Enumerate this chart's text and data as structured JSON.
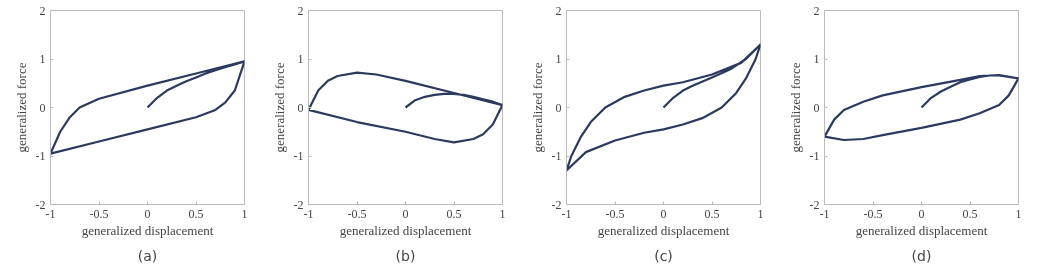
{
  "chart_data": [
    {
      "type": "line",
      "xlabel": "generalized displacement",
      "ylabel": "generalized force",
      "annotations": [
        "(a)"
      ],
      "xlim": [
        -1,
        1
      ],
      "ylim": [
        -2,
        2
      ],
      "xticks": [
        -1,
        -0.5,
        0,
        0.5,
        1
      ],
      "yticks": [
        -2,
        -1,
        0,
        1,
        2
      ],
      "grid": false,
      "series": [
        {
          "color": "#2b3a5e",
          "x": [
            0,
            0.1,
            0.2,
            0.3,
            0.4,
            0.5,
            0.6,
            0.7,
            0.8,
            0.9,
            1,
            0.5,
            0,
            -0.5,
            -0.7,
            -0.8,
            -0.9,
            -1,
            -0.5,
            0,
            0.5,
            0.7,
            0.8,
            0.9,
            1
          ],
          "values": [
            0,
            0.2,
            0.35,
            0.45,
            0.54,
            0.62,
            0.7,
            0.77,
            0.83,
            0.89,
            0.95,
            0.7,
            0.45,
            0.18,
            0,
            -0.2,
            -0.5,
            -0.95,
            -0.7,
            -0.45,
            -0.2,
            -0.05,
            0.1,
            0.35,
            0.95
          ]
        }
      ]
    },
    {
      "type": "line",
      "xlabel": "generalized displacement",
      "ylabel": "generalized force",
      "annotations": [
        "(b)"
      ],
      "xlim": [
        -1,
        1
      ],
      "ylim": [
        -2,
        2
      ],
      "xticks": [
        -1,
        -0.5,
        0,
        0.5,
        1
      ],
      "yticks": [
        -2,
        -1,
        0,
        1,
        2
      ],
      "grid": false,
      "series": [
        {
          "color": "#2b3a5e",
          "x": [
            0,
            0.1,
            0.2,
            0.3,
            0.4,
            0.5,
            0.6,
            0.7,
            0.8,
            0.9,
            1,
            0.5,
            0,
            -0.3,
            -0.5,
            -0.7,
            -0.8,
            -0.9,
            -1,
            -0.5,
            0,
            0.3,
            0.5,
            0.7,
            0.8,
            0.9,
            1
          ],
          "values": [
            0,
            0.15,
            0.22,
            0.26,
            0.28,
            0.28,
            0.26,
            0.22,
            0.17,
            0.12,
            0.05,
            0.3,
            0.55,
            0.68,
            0.72,
            0.65,
            0.55,
            0.35,
            -0.05,
            -0.3,
            -0.5,
            -0.65,
            -0.72,
            -0.65,
            -0.55,
            -0.35,
            0.05
          ]
        }
      ]
    },
    {
      "type": "line",
      "xlabel": "generalized displacement",
      "ylabel": "generalized force",
      "annotations": [
        "(c)"
      ],
      "xlim": [
        -1,
        1
      ],
      "ylim": [
        -2,
        2
      ],
      "xticks": [
        -1,
        -0.5,
        0,
        0.5,
        1
      ],
      "yticks": [
        -2,
        -1,
        0,
        1,
        2
      ],
      "grid": false,
      "series": [
        {
          "color": "#2b3a5e",
          "x": [
            0,
            0.1,
            0.2,
            0.3,
            0.5,
            0.7,
            0.85,
            1,
            0.8,
            0.5,
            0.2,
            0,
            -0.2,
            -0.4,
            -0.6,
            -0.75,
            -0.85,
            -0.95,
            -1,
            -0.8,
            -0.5,
            -0.2,
            0,
            0.2,
            0.4,
            0.6,
            0.75,
            0.85,
            0.95,
            1
          ],
          "values": [
            0,
            0.2,
            0.35,
            0.45,
            0.62,
            0.8,
            1.0,
            1.3,
            0.92,
            0.68,
            0.52,
            0.45,
            0.35,
            0.22,
            0,
            -0.3,
            -0.6,
            -1.0,
            -1.3,
            -0.92,
            -0.68,
            -0.52,
            -0.45,
            -0.35,
            -0.22,
            0,
            0.3,
            0.6,
            1.0,
            1.3
          ]
        }
      ]
    },
    {
      "type": "line",
      "xlabel": "generalized displacement",
      "ylabel": "generalized force",
      "annotations": [
        "(d)"
      ],
      "xlim": [
        -1,
        1
      ],
      "ylim": [
        -2,
        2
      ],
      "xticks": [
        -1,
        -0.5,
        0,
        0.5,
        1
      ],
      "yticks": [
        -2,
        -1,
        0,
        1,
        2
      ],
      "grid": false,
      "series": [
        {
          "color": "#2b3a5e",
          "x": [
            0,
            0.1,
            0.2,
            0.3,
            0.4,
            0.5,
            0.6,
            0.7,
            0.8,
            0.9,
            1,
            0.8,
            0.6,
            0.4,
            0,
            -0.4,
            -0.6,
            -0.8,
            -0.9,
            -1,
            -0.8,
            -0.6,
            -0.4,
            0,
            0.4,
            0.6,
            0.8,
            0.9,
            1
          ],
          "values": [
            0,
            0.2,
            0.33,
            0.43,
            0.52,
            0.58,
            0.63,
            0.66,
            0.66,
            0.63,
            0.6,
            0.67,
            0.65,
            0.57,
            0.42,
            0.25,
            0.12,
            -0.05,
            -0.25,
            -0.6,
            -0.67,
            -0.65,
            -0.57,
            -0.42,
            -0.25,
            -0.12,
            0.05,
            0.25,
            0.6
          ]
        }
      ]
    }
  ]
}
